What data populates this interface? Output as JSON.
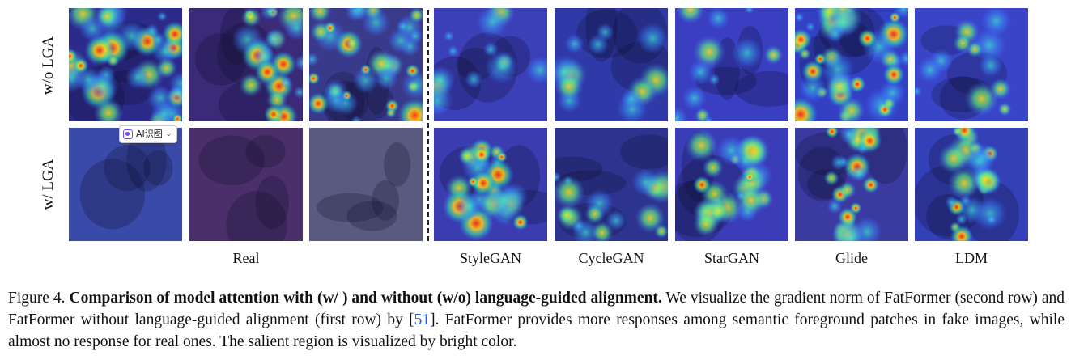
{
  "row_labels": {
    "top": "w/o LGA",
    "bottom": "w/ LGA"
  },
  "column_labels": {
    "real": "Real",
    "stylegan": "StyleGAN",
    "cyclegan": "CycleGAN",
    "stargan": "StarGAN",
    "glide": "Glide",
    "ldm": "LDM"
  },
  "overlay_badge": {
    "label": "AI识图",
    "chevron": "⌄"
  },
  "caption": {
    "prefix": "Figure 4.",
    "title": "Comparison of model attention with (w/ ) and without (w/o) language-guided alignment.",
    "text_1": "We visualize the gradient norm of FatFormer (second row) and FatFormer without language-guided alignment (first row) by [",
    "ref": "51",
    "text_2": "]. FatFormer provides more responses among semantic foreground patches in fake images, while almost no response for real ones. The salient region is visualized by bright color."
  },
  "colors": {
    "base": "#3a3fc8",
    "hot": "#ff3b1a",
    "warm": "#ffd21a",
    "mid": "#36e0a0",
    "link": "#1f5bd8"
  }
}
